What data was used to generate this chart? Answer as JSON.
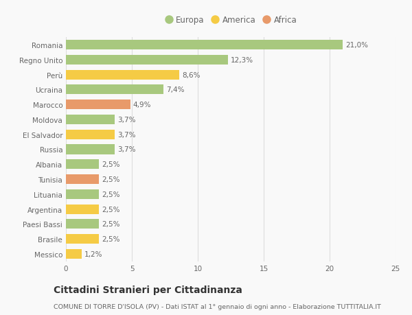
{
  "categories": [
    "Romania",
    "Regno Unito",
    "Perù",
    "Ucraina",
    "Marocco",
    "Moldova",
    "El Salvador",
    "Russia",
    "Albania",
    "Tunisia",
    "Lituania",
    "Argentina",
    "Paesi Bassi",
    "Brasile",
    "Messico"
  ],
  "values": [
    21.0,
    12.3,
    8.6,
    7.4,
    4.9,
    3.7,
    3.7,
    3.7,
    2.5,
    2.5,
    2.5,
    2.5,
    2.5,
    2.5,
    1.2
  ],
  "continents": [
    "Europa",
    "Europa",
    "America",
    "Europa",
    "Africa",
    "Europa",
    "America",
    "Europa",
    "Europa",
    "Africa",
    "Europa",
    "America",
    "Europa",
    "America",
    "America"
  ],
  "colors": {
    "Europa": "#a8c87e",
    "America": "#f5cb45",
    "Africa": "#e89a6a"
  },
  "legend_order": [
    "Europa",
    "America",
    "Africa"
  ],
  "legend_colors": [
    "#a8c87e",
    "#f5cb45",
    "#e89a6a"
  ],
  "xlim": [
    0,
    25
  ],
  "xticks": [
    0,
    5,
    10,
    15,
    20,
    25
  ],
  "title": "Cittadini Stranieri per Cittadinanza",
  "subtitle": "COMUNE DI TORRE D'ISOLA (PV) - Dati ISTAT al 1° gennaio di ogni anno - Elaborazione TUTTITALIA.IT",
  "background_color": "#f9f9f9",
  "grid_color": "#dddddd",
  "bar_height": 0.65,
  "label_fontsize": 7.5,
  "tick_fontsize": 7.5,
  "title_fontsize": 10,
  "subtitle_fontsize": 6.8,
  "legend_fontsize": 8.5
}
